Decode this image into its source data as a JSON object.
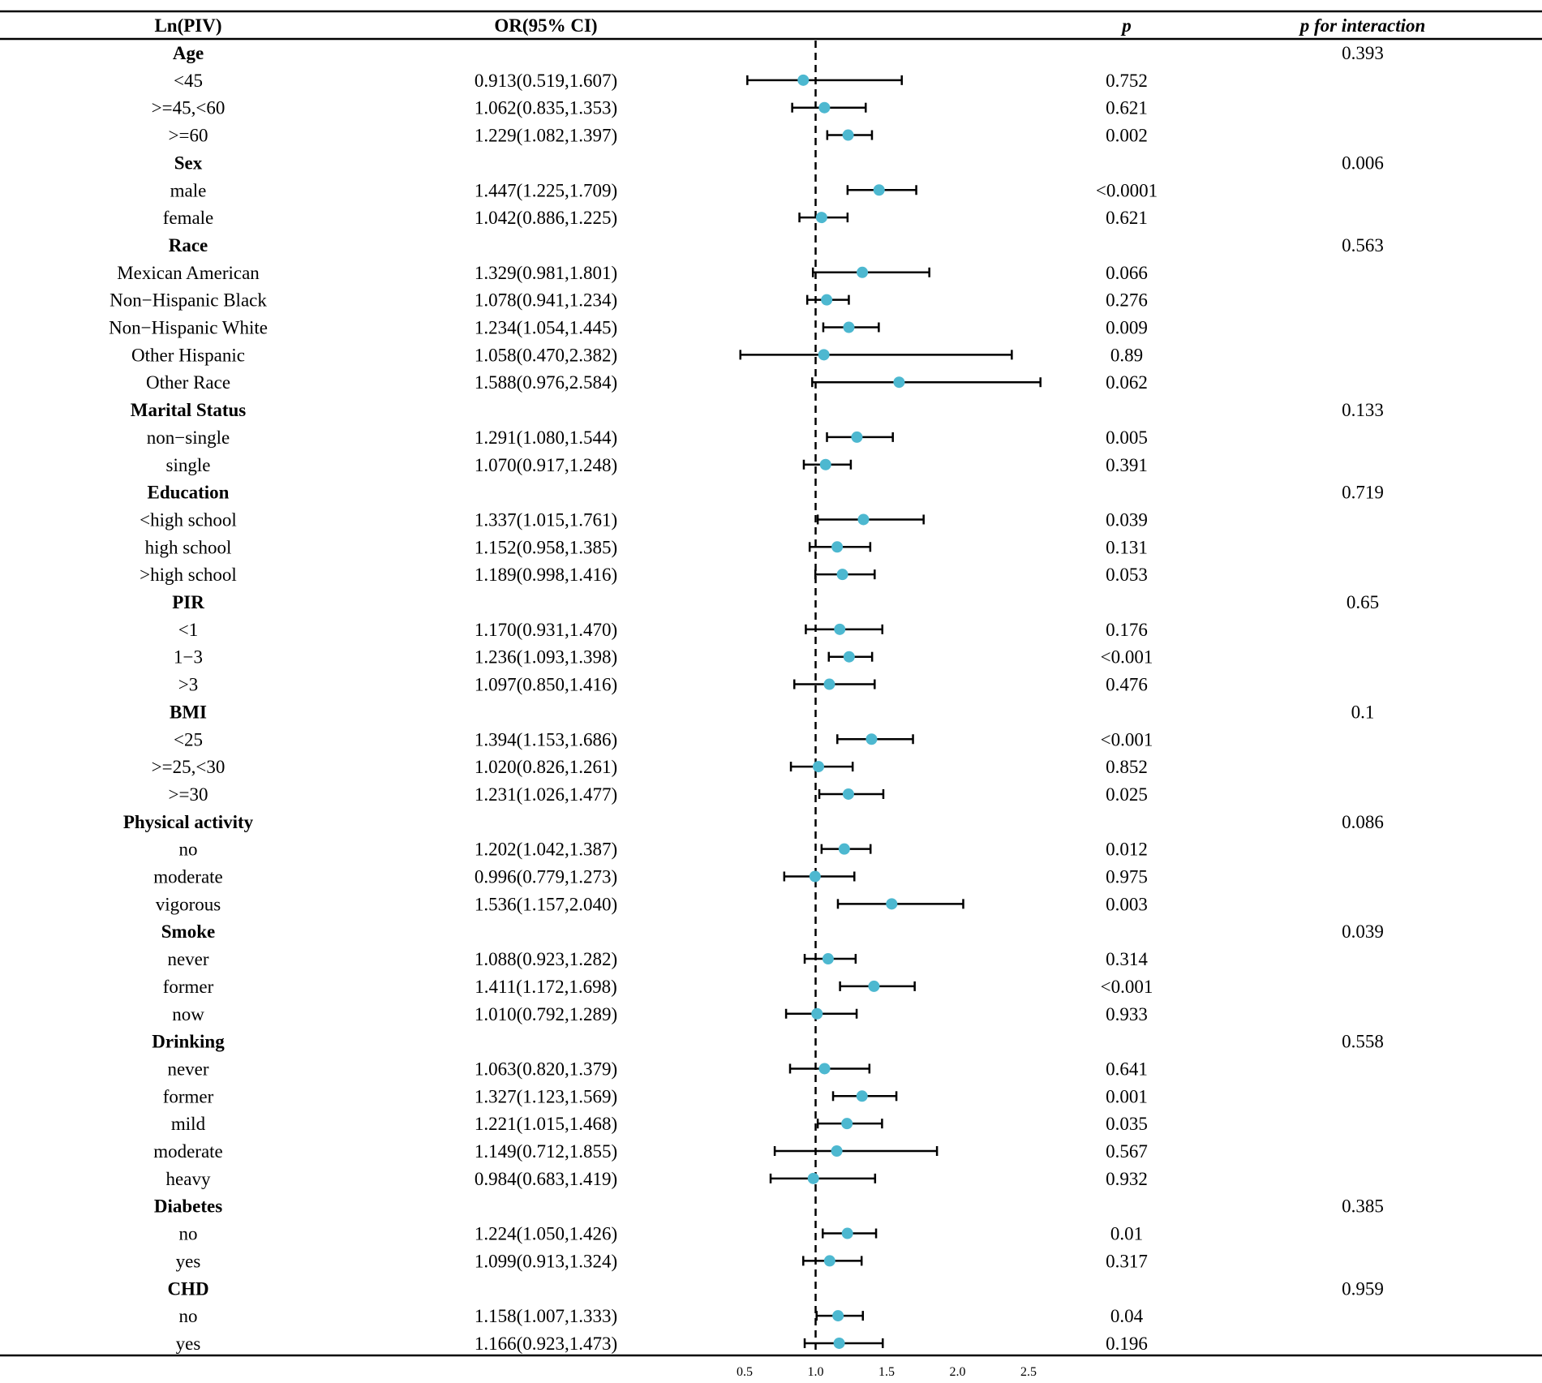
{
  "chart_data": {
    "type": "forest",
    "title": "",
    "headers": {
      "variable": "Ln(PIV)",
      "or_ci": "OR(95% CI)",
      "p": "p",
      "p_interaction": "p for interaction"
    },
    "reference_line": 1.0,
    "xlim": [
      0.5,
      2.5
    ],
    "xticks": [
      "0.5",
      "1.0",
      "1.5",
      "2.0",
      "2.5"
    ],
    "marker_color": "#4db8d0",
    "rows": [
      {
        "label": "Age",
        "group": true,
        "p_interaction": "0.393"
      },
      {
        "label": "<45",
        "or": 0.913,
        "lo": 0.519,
        "hi": 1.607,
        "ci_text": "0.913(0.519,1.607)",
        "p": "0.752"
      },
      {
        "label": ">=45,<60",
        "or": 1.062,
        "lo": 0.835,
        "hi": 1.353,
        "ci_text": "1.062(0.835,1.353)",
        "p": "0.621"
      },
      {
        "label": ">=60",
        "or": 1.229,
        "lo": 1.082,
        "hi": 1.397,
        "ci_text": "1.229(1.082,1.397)",
        "p": "0.002"
      },
      {
        "label": "Sex",
        "group": true,
        "p_interaction": "0.006"
      },
      {
        "label": "male",
        "or": 1.447,
        "lo": 1.225,
        "hi": 1.709,
        "ci_text": "1.447(1.225,1.709)",
        "p": "<0.0001"
      },
      {
        "label": "female",
        "or": 1.042,
        "lo": 0.886,
        "hi": 1.225,
        "ci_text": "1.042(0.886,1.225)",
        "p": "0.621"
      },
      {
        "label": "Race",
        "group": true,
        "p_interaction": "0.563"
      },
      {
        "label": "Mexican American",
        "or": 1.329,
        "lo": 0.981,
        "hi": 1.801,
        "ci_text": "1.329(0.981,1.801)",
        "p": "0.066"
      },
      {
        "label": "Non−Hispanic Black",
        "or": 1.078,
        "lo": 0.941,
        "hi": 1.234,
        "ci_text": "1.078(0.941,1.234)",
        "p": "0.276"
      },
      {
        "label": "Non−Hispanic White",
        "or": 1.234,
        "lo": 1.054,
        "hi": 1.445,
        "ci_text": "1.234(1.054,1.445)",
        "p": "0.009"
      },
      {
        "label": "Other Hispanic",
        "or": 1.058,
        "lo": 0.47,
        "hi": 2.382,
        "ci_text": "1.058(0.470,2.382)",
        "p": "0.89"
      },
      {
        "label": "Other Race",
        "or": 1.588,
        "lo": 0.976,
        "hi": 2.584,
        "ci_text": "1.588(0.976,2.584)",
        "p": "0.062"
      },
      {
        "label": "Marital Status",
        "group": true,
        "p_interaction": "0.133"
      },
      {
        "label": "non−single",
        "or": 1.291,
        "lo": 1.08,
        "hi": 1.544,
        "ci_text": "1.291(1.080,1.544)",
        "p": "0.005"
      },
      {
        "label": "single",
        "or": 1.07,
        "lo": 0.917,
        "hi": 1.248,
        "ci_text": "1.070(0.917,1.248)",
        "p": "0.391"
      },
      {
        "label": "Education",
        "group": true,
        "p_interaction": "0.719"
      },
      {
        "label": "<high school",
        "or": 1.337,
        "lo": 1.015,
        "hi": 1.761,
        "ci_text": "1.337(1.015,1.761)",
        "p": "0.039"
      },
      {
        "label": "high school",
        "or": 1.152,
        "lo": 0.958,
        "hi": 1.385,
        "ci_text": "1.152(0.958,1.385)",
        "p": "0.131"
      },
      {
        "label": ">high school",
        "or": 1.189,
        "lo": 0.998,
        "hi": 1.416,
        "ci_text": "1.189(0.998,1.416)",
        "p": "0.053"
      },
      {
        "label": "PIR",
        "group": true,
        "p_interaction": "0.65"
      },
      {
        "label": "<1",
        "or": 1.17,
        "lo": 0.931,
        "hi": 1.47,
        "ci_text": "1.170(0.931,1.470)",
        "p": "0.176"
      },
      {
        "label": "1−3",
        "or": 1.236,
        "lo": 1.093,
        "hi": 1.398,
        "ci_text": "1.236(1.093,1.398)",
        "p": "<0.001"
      },
      {
        "label": ">3",
        "or": 1.097,
        "lo": 0.85,
        "hi": 1.416,
        "ci_text": "1.097(0.850,1.416)",
        "p": "0.476"
      },
      {
        "label": "BMI",
        "group": true,
        "p_interaction": "0.1"
      },
      {
        "label": "<25",
        "or": 1.394,
        "lo": 1.153,
        "hi": 1.686,
        "ci_text": "1.394(1.153,1.686)",
        "p": "<0.001"
      },
      {
        "label": ">=25,<30",
        "or": 1.02,
        "lo": 0.826,
        "hi": 1.261,
        "ci_text": "1.020(0.826,1.261)",
        "p": "0.852"
      },
      {
        "label": ">=30",
        "or": 1.231,
        "lo": 1.026,
        "hi": 1.477,
        "ci_text": "1.231(1.026,1.477)",
        "p": "0.025"
      },
      {
        "label": "Physical activity",
        "group": true,
        "p_interaction": "0.086"
      },
      {
        "label": "no",
        "or": 1.202,
        "lo": 1.042,
        "hi": 1.387,
        "ci_text": "1.202(1.042,1.387)",
        "p": "0.012"
      },
      {
        "label": "moderate",
        "or": 0.996,
        "lo": 0.779,
        "hi": 1.273,
        "ci_text": "0.996(0.779,1.273)",
        "p": "0.975"
      },
      {
        "label": "vigorous",
        "or": 1.536,
        "lo": 1.157,
        "hi": 2.04,
        "ci_text": "1.536(1.157,2.040)",
        "p": "0.003"
      },
      {
        "label": "Smoke",
        "group": true,
        "p_interaction": "0.039"
      },
      {
        "label": "never",
        "or": 1.088,
        "lo": 0.923,
        "hi": 1.282,
        "ci_text": "1.088(0.923,1.282)",
        "p": "0.314"
      },
      {
        "label": "former",
        "or": 1.411,
        "lo": 1.172,
        "hi": 1.698,
        "ci_text": "1.411(1.172,1.698)",
        "p": "<0.001"
      },
      {
        "label": "now",
        "or": 1.01,
        "lo": 0.792,
        "hi": 1.289,
        "ci_text": "1.010(0.792,1.289)",
        "p": "0.933"
      },
      {
        "label": "Drinking",
        "group": true,
        "p_interaction": "0.558"
      },
      {
        "label": "never",
        "or": 1.063,
        "lo": 0.82,
        "hi": 1.379,
        "ci_text": "1.063(0.820,1.379)",
        "p": "0.641"
      },
      {
        "label": "former",
        "or": 1.327,
        "lo": 1.123,
        "hi": 1.569,
        "ci_text": "1.327(1.123,1.569)",
        "p": "0.001"
      },
      {
        "label": "mild",
        "or": 1.221,
        "lo": 1.015,
        "hi": 1.468,
        "ci_text": "1.221(1.015,1.468)",
        "p": "0.035"
      },
      {
        "label": "moderate",
        "or": 1.149,
        "lo": 0.712,
        "hi": 1.855,
        "ci_text": "1.149(0.712,1.855)",
        "p": "0.567"
      },
      {
        "label": "heavy",
        "or": 0.984,
        "lo": 0.683,
        "hi": 1.419,
        "ci_text": "0.984(0.683,1.419)",
        "p": "0.932"
      },
      {
        "label": "Diabetes",
        "group": true,
        "p_interaction": "0.385"
      },
      {
        "label": "no",
        "or": 1.224,
        "lo": 1.05,
        "hi": 1.426,
        "ci_text": "1.224(1.050,1.426)",
        "p": "0.01"
      },
      {
        "label": "yes",
        "or": 1.099,
        "lo": 0.913,
        "hi": 1.324,
        "ci_text": "1.099(0.913,1.324)",
        "p": "0.317"
      },
      {
        "label": "CHD",
        "group": true,
        "p_interaction": "0.959"
      },
      {
        "label": "no",
        "or": 1.158,
        "lo": 1.007,
        "hi": 1.333,
        "ci_text": "1.158(1.007,1.333)",
        "p": "0.04"
      },
      {
        "label": "yes",
        "or": 1.166,
        "lo": 0.923,
        "hi": 1.473,
        "ci_text": "1.166(0.923,1.473)",
        "p": "0.196"
      }
    ]
  }
}
